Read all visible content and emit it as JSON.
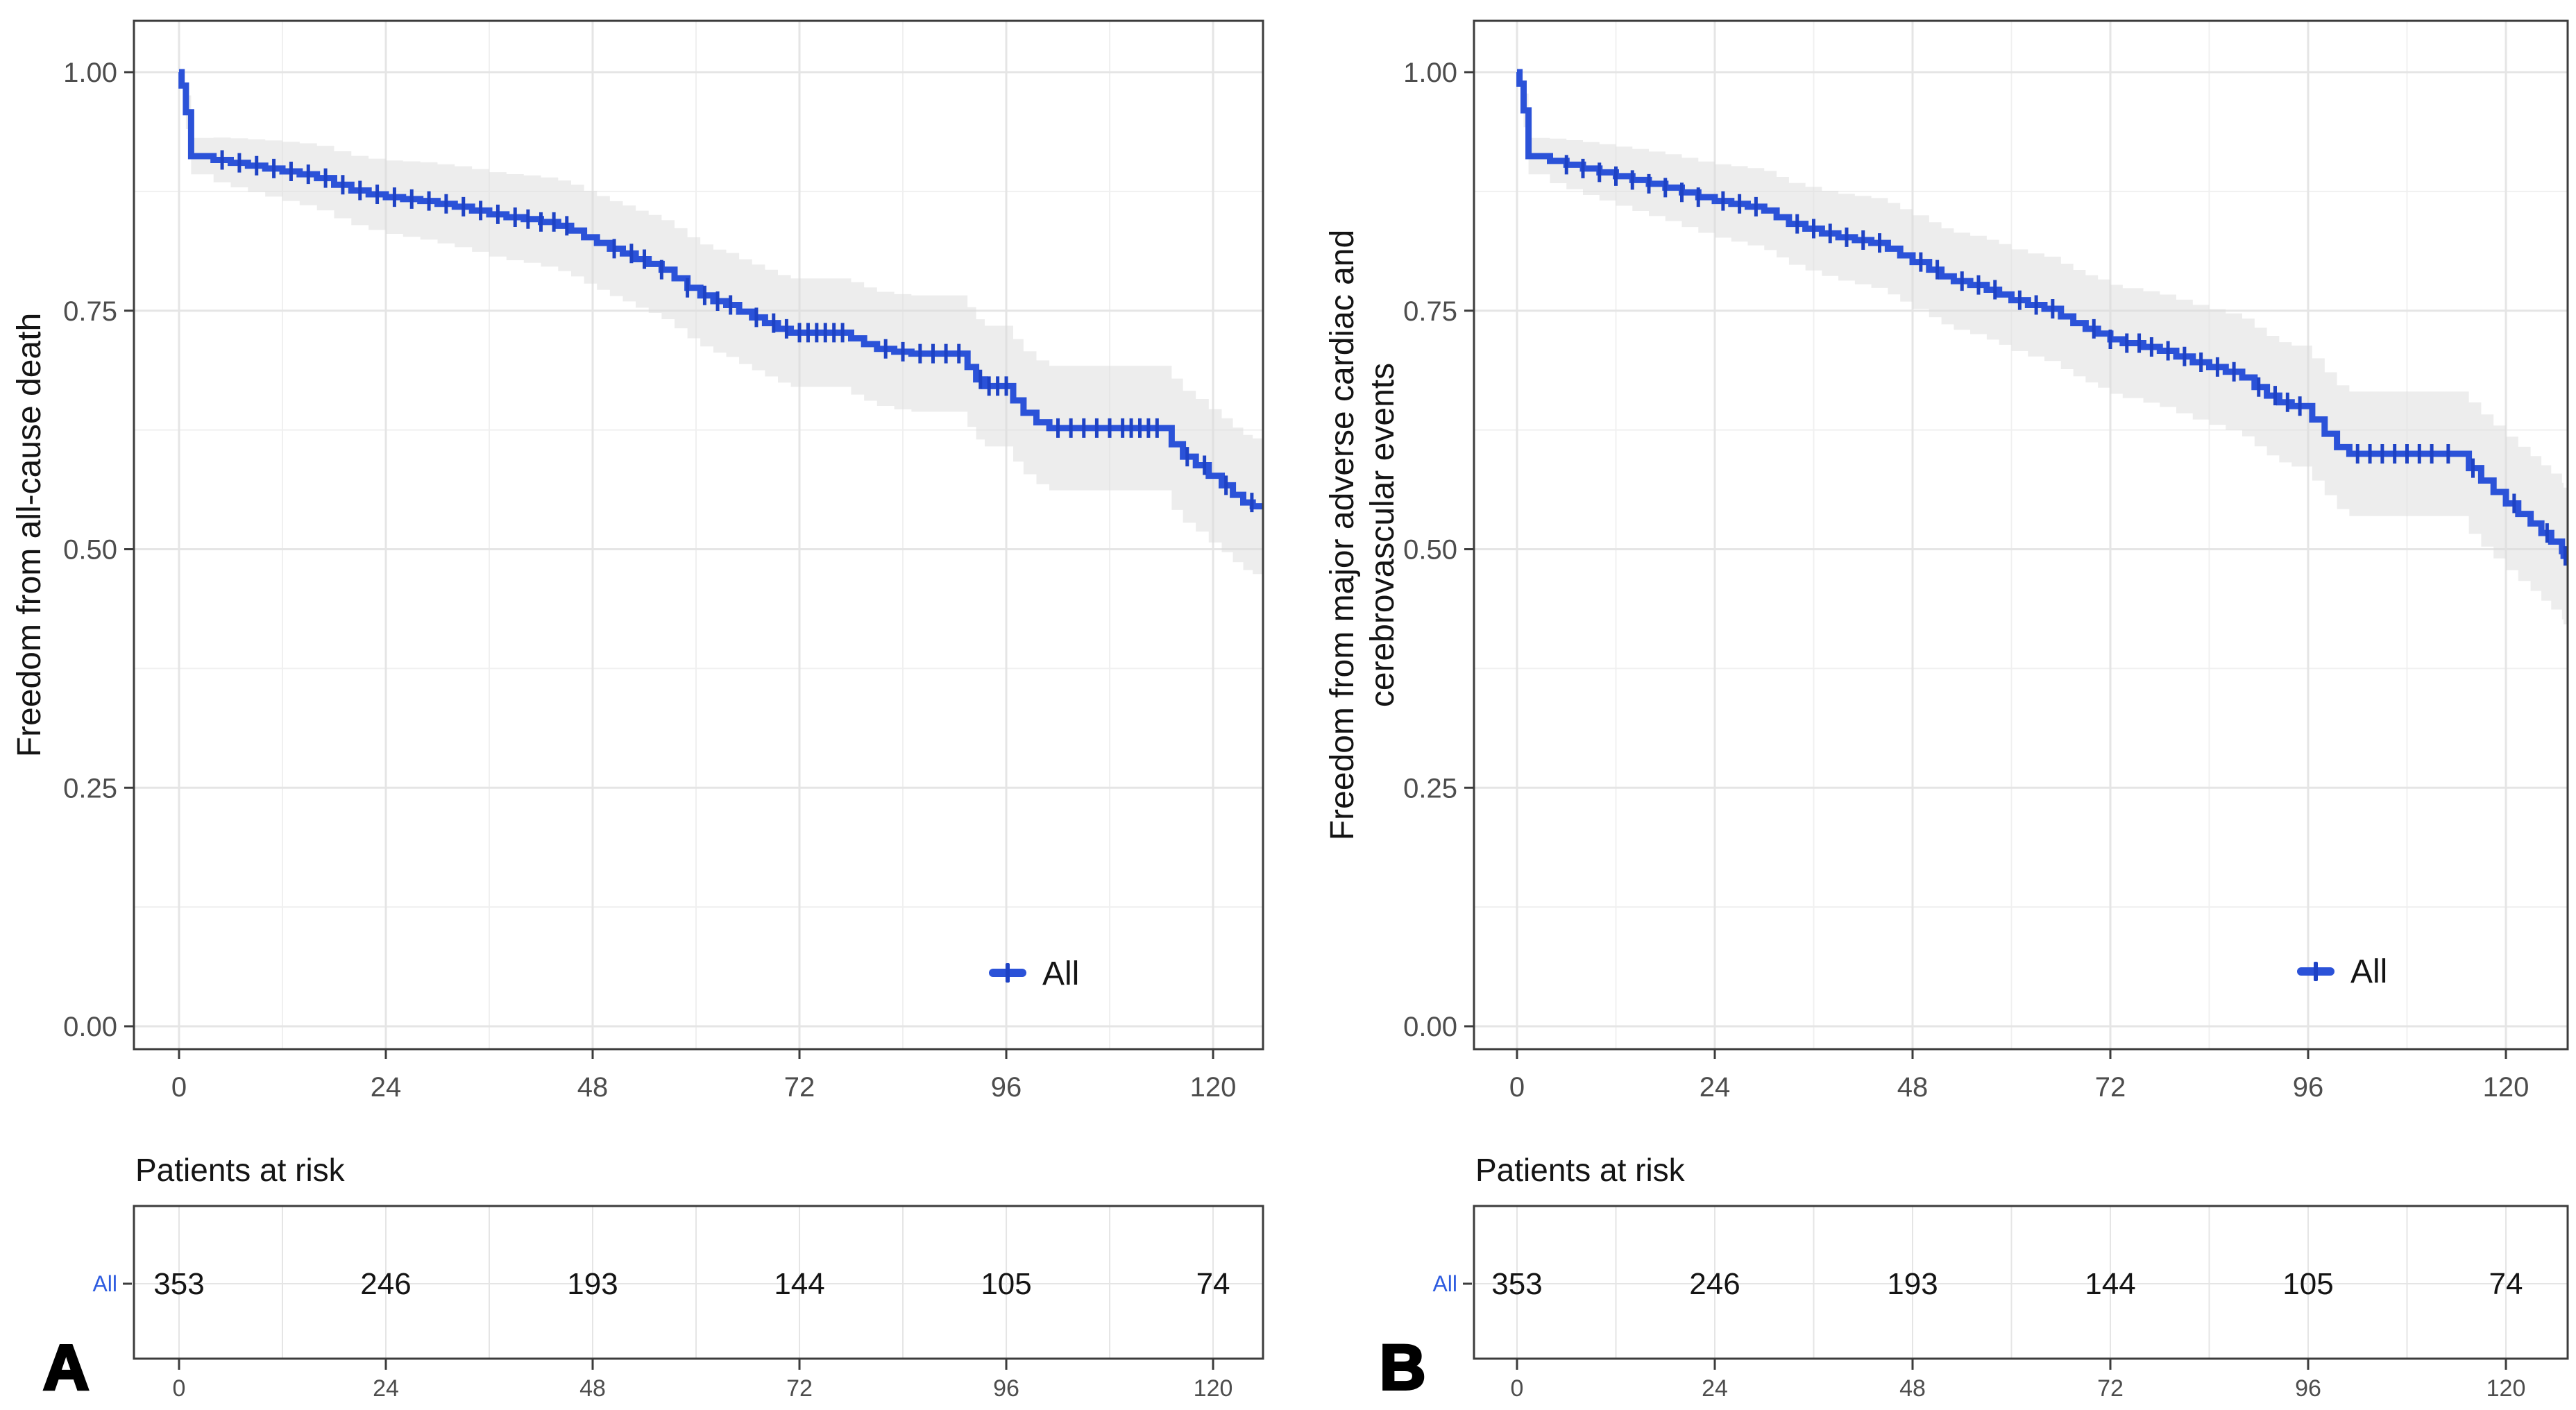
{
  "colors": {
    "curve": "#2b52d8",
    "censor": "#1e42c4",
    "ribbon": "#dcdcdc",
    "grid_major": "#e5e5e5",
    "grid_minor": "#f0f0f0",
    "axis_text": "#4d4d4d",
    "border": "#3c3c3c",
    "risk_row_label": "#2e5ce0",
    "title_text": "#141414"
  },
  "chart_data": [
    {
      "type": "line",
      "subtype": "kaplan-meier-step",
      "panel_letter": "A",
      "ylabel": "Freedom from all-cause death",
      "ylabel_lines": [
        "Freedom from all-cause death"
      ],
      "xlabel": "",
      "x_ticks": [
        0,
        24,
        48,
        72,
        96,
        120
      ],
      "x_minor_ticks": [
        12,
        36,
        60,
        84,
        108
      ],
      "y_ticks": [
        "0.00",
        "0.25",
        "0.50",
        "0.75",
        "1.00"
      ],
      "y_tick_values": [
        0,
        0.25,
        0.5,
        0.75,
        1.0
      ],
      "y_minor_values": [
        0.125,
        0.375,
        0.625,
        0.875
      ],
      "xlim": [
        -5.2,
        125.8
      ],
      "ylim": [
        -0.02,
        1.07
      ],
      "grid": true,
      "legend": {
        "label": "All",
        "position": "inside-bottom-right"
      },
      "series": [
        {
          "name": "All",
          "steps": [
            [
              0,
              1.0
            ],
            [
              0.3,
              0.986
            ],
            [
              0.8,
              0.958
            ],
            [
              1.4,
              0.912
            ],
            [
              4,
              0.908
            ],
            [
              6,
              0.905
            ],
            [
              8,
              0.902
            ],
            [
              10,
              0.899
            ],
            [
              12,
              0.896
            ],
            [
              14,
              0.893
            ],
            [
              16,
              0.889
            ],
            [
              18,
              0.882
            ],
            [
              20,
              0.876
            ],
            [
              22,
              0.872
            ],
            [
              24,
              0.869
            ],
            [
              26,
              0.867
            ],
            [
              28,
              0.865
            ],
            [
              30,
              0.862
            ],
            [
              32,
              0.859
            ],
            [
              34,
              0.855
            ],
            [
              36,
              0.851
            ],
            [
              38,
              0.848
            ],
            [
              40,
              0.846
            ],
            [
              42,
              0.843
            ],
            [
              44,
              0.839
            ],
            [
              45.5,
              0.834
            ],
            [
              47,
              0.827
            ],
            [
              48.5,
              0.821
            ],
            [
              50,
              0.815
            ],
            [
              51.5,
              0.81
            ],
            [
              53,
              0.804
            ],
            [
              54.5,
              0.799
            ],
            [
              56,
              0.793
            ],
            [
              57.5,
              0.784
            ],
            [
              59,
              0.774
            ],
            [
              60.5,
              0.766
            ],
            [
              62,
              0.76
            ],
            [
              63.5,
              0.756
            ],
            [
              65,
              0.749
            ],
            [
              66.5,
              0.743
            ],
            [
              68,
              0.737
            ],
            [
              69.5,
              0.731
            ],
            [
              71,
              0.727
            ],
            [
              78,
              0.721
            ],
            [
              79.5,
              0.715
            ],
            [
              81,
              0.71
            ],
            [
              83,
              0.707
            ],
            [
              85,
              0.705
            ],
            [
              91.5,
              0.691
            ],
            [
              92.5,
              0.678
            ],
            [
              93.5,
              0.671
            ],
            [
              96.8,
              0.656
            ],
            [
              98,
              0.643
            ],
            [
              99.5,
              0.633
            ],
            [
              101,
              0.627
            ],
            [
              115.2,
              0.61
            ],
            [
              116.5,
              0.597
            ],
            [
              118,
              0.588
            ],
            [
              119.5,
              0.577
            ],
            [
              121,
              0.567
            ],
            [
              122.3,
              0.557
            ],
            [
              123.5,
              0.549
            ],
            [
              124.6,
              0.545
            ]
          ],
          "censor_times": [
            5,
            7,
            9,
            11,
            13,
            15,
            17,
            19,
            21,
            23,
            25,
            27,
            29,
            31,
            33,
            35,
            37,
            39,
            40.5,
            42,
            43.5,
            45,
            50.5,
            52.5,
            54,
            56,
            59,
            61,
            62.5,
            64,
            67,
            69,
            70.5,
            72,
            73,
            74,
            75,
            76,
            77,
            82,
            84,
            86,
            87.5,
            89,
            90.5,
            93,
            94,
            95,
            96,
            102,
            103.5,
            105,
            106.5,
            108,
            109.5,
            110.5,
            111.5,
            112.5,
            113.5,
            117,
            119,
            121.5,
            124.5
          ],
          "ci_band": "delta(t) = 0.013 + 0.0052*sqrt(t), clipped at 1.0"
        }
      ],
      "risk_table": {
        "title": "Patients at risk",
        "row_label": "All",
        "times": [
          0,
          24,
          48,
          72,
          96,
          120
        ],
        "counts": [
          353,
          246,
          193,
          144,
          105,
          74
        ]
      }
    },
    {
      "type": "line",
      "subtype": "kaplan-meier-step",
      "panel_letter": "B",
      "ylabel": "Freedom from major adverse cardiac and cerebrovascular events",
      "ylabel_lines": [
        "Freedom from major adverse cardiac and",
        "cerebrovascular events"
      ],
      "xlabel": "",
      "x_ticks": [
        0,
        24,
        48,
        72,
        96,
        120
      ],
      "x_minor_ticks": [
        12,
        36,
        60,
        84,
        108
      ],
      "y_ticks": [
        "0.00",
        "0.25",
        "0.50",
        "0.75",
        "1.00"
      ],
      "y_tick_values": [
        0,
        0.25,
        0.5,
        0.75,
        1.0
      ],
      "y_minor_values": [
        0.125,
        0.375,
        0.625,
        0.875
      ],
      "xlim": [
        -5.2,
        127.6
      ],
      "ylim": [
        -0.02,
        1.07
      ],
      "grid": true,
      "legend": {
        "label": "All",
        "position": "inside-bottom-right"
      },
      "series": [
        {
          "name": "All",
          "steps": [
            [
              0,
              1.0
            ],
            [
              0.3,
              0.988
            ],
            [
              0.8,
              0.96
            ],
            [
              1.4,
              0.912
            ],
            [
              4,
              0.907
            ],
            [
              6,
              0.903
            ],
            [
              8,
              0.899
            ],
            [
              10,
              0.895
            ],
            [
              12,
              0.891
            ],
            [
              14,
              0.887
            ],
            [
              16,
              0.883
            ],
            [
              18,
              0.879
            ],
            [
              20,
              0.874
            ],
            [
              22,
              0.869
            ],
            [
              24,
              0.865
            ],
            [
              26,
              0.862
            ],
            [
              28,
              0.859
            ],
            [
              30,
              0.855
            ],
            [
              31.5,
              0.848
            ],
            [
              33,
              0.841
            ],
            [
              35,
              0.836
            ],
            [
              37,
              0.831
            ],
            [
              39,
              0.827
            ],
            [
              41,
              0.824
            ],
            [
              43,
              0.821
            ],
            [
              45,
              0.815
            ],
            [
              46.5,
              0.808
            ],
            [
              48,
              0.801
            ],
            [
              50,
              0.793
            ],
            [
              51.5,
              0.786
            ],
            [
              53,
              0.781
            ],
            [
              55,
              0.777
            ],
            [
              57,
              0.772
            ],
            [
              58.5,
              0.767
            ],
            [
              60,
              0.761
            ],
            [
              62,
              0.756
            ],
            [
              64,
              0.752
            ],
            [
              66,
              0.744
            ],
            [
              67.5,
              0.737
            ],
            [
              69,
              0.731
            ],
            [
              70.5,
              0.726
            ],
            [
              72,
              0.72
            ],
            [
              73.5,
              0.716
            ],
            [
              76,
              0.712
            ],
            [
              78,
              0.708
            ],
            [
              80,
              0.702
            ],
            [
              82,
              0.696
            ],
            [
              84,
              0.691
            ],
            [
              86,
              0.686
            ],
            [
              88,
              0.68
            ],
            [
              89.5,
              0.67
            ],
            [
              91,
              0.661
            ],
            [
              92.5,
              0.654
            ],
            [
              94,
              0.65
            ],
            [
              96.5,
              0.636
            ],
            [
              98,
              0.621
            ],
            [
              99.5,
              0.607
            ],
            [
              101,
              0.6
            ],
            [
              115.5,
              0.585
            ],
            [
              117,
              0.572
            ],
            [
              118.5,
              0.56
            ],
            [
              120,
              0.548
            ],
            [
              121.5,
              0.537
            ],
            [
              123,
              0.527
            ],
            [
              124.3,
              0.517
            ],
            [
              125.5,
              0.508
            ],
            [
              126.8,
              0.498
            ],
            [
              127,
              0.493
            ]
          ],
          "censor_times": [
            6,
            8,
            10,
            12,
            14,
            16,
            18,
            20,
            22,
            25,
            27,
            29,
            34,
            36,
            38,
            40,
            42,
            44,
            49,
            51,
            54,
            56,
            58,
            61,
            63,
            65,
            70,
            72,
            74,
            75.5,
            77,
            79,
            81,
            83,
            85,
            87,
            90,
            92,
            93.5,
            95,
            102,
            103.5,
            105,
            106.5,
            108,
            109.5,
            111,
            113,
            116,
            121,
            125,
            127.2
          ],
          "ci_band": "delta(t) = 0.013 + 0.0052*sqrt(t), clipped at 1.0"
        }
      ],
      "risk_table": {
        "title": "Patients at risk",
        "row_label": "All",
        "times": [
          0,
          24,
          48,
          72,
          96,
          120
        ],
        "counts": [
          353,
          246,
          193,
          144,
          105,
          74
        ]
      }
    }
  ]
}
